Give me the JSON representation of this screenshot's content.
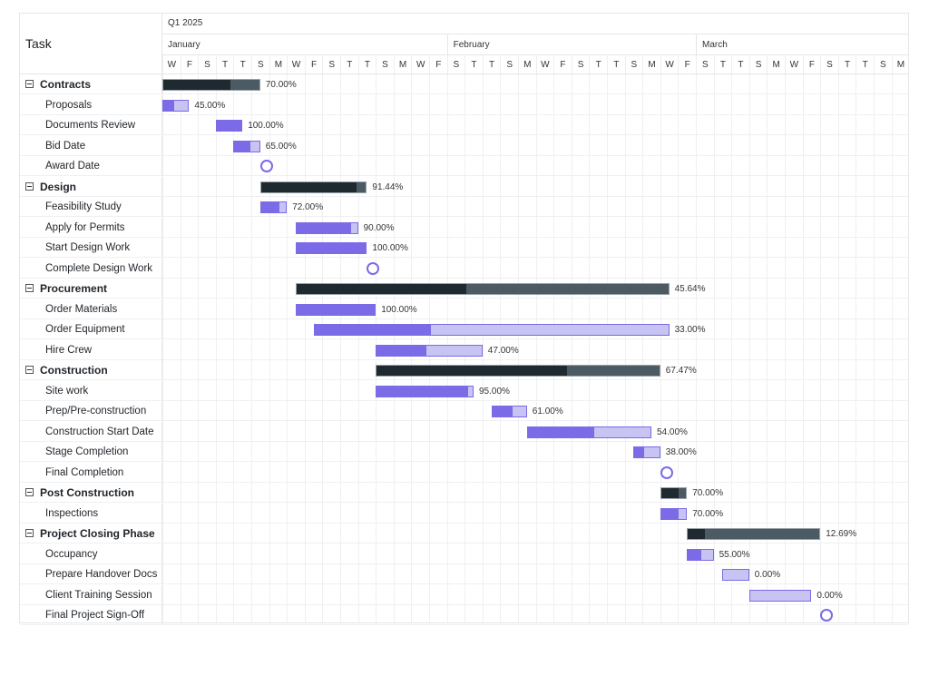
{
  "header": {
    "task_label": "Task",
    "quarter": "Q1 2025",
    "months": [
      "January",
      "February",
      "March"
    ],
    "days": [
      "W",
      "F",
      "S",
      "T",
      "T",
      "S",
      "M",
      "W",
      "F",
      "S",
      "T",
      "T",
      "S",
      "M",
      "W",
      "F",
      "S",
      "T",
      "T",
      "S",
      "M",
      "W",
      "F",
      "S",
      "T",
      "T",
      "S",
      "M",
      "W",
      "F",
      "S",
      "T",
      "T",
      "S",
      "M",
      "W",
      "F",
      "S",
      "T",
      "T",
      "S",
      "M"
    ]
  },
  "colors": {
    "progress_fill": "#7b6be6",
    "progress_track": "#c7c3f2",
    "summary_fill": "#1f2a30",
    "summary_track": "#4b5a63"
  },
  "tasks": [
    {
      "name": "Contracts",
      "type": "parent",
      "start": 0,
      "duration": 5.5,
      "progress": 70.0,
      "label": "70.00%"
    },
    {
      "name": "Proposals",
      "type": "child",
      "start": 0,
      "duration": 1.5,
      "progress": 45.0,
      "label": "45.00%"
    },
    {
      "name": "Documents Review",
      "type": "child",
      "start": 3,
      "duration": 1.5,
      "progress": 100.0,
      "label": "100.00%"
    },
    {
      "name": "Bid Date",
      "type": "child",
      "start": 4,
      "duration": 1.5,
      "progress": 65.0,
      "label": "65.00%"
    },
    {
      "name": "Award Date",
      "type": "milestone",
      "start": 5.5
    },
    {
      "name": "Design",
      "type": "parent",
      "start": 5.5,
      "duration": 6,
      "progress": 91.44,
      "label": "91.44%"
    },
    {
      "name": "Feasibility Study",
      "type": "child",
      "start": 5.5,
      "duration": 1.5,
      "progress": 72.0,
      "label": "72.00%"
    },
    {
      "name": "Apply for Permits",
      "type": "child",
      "start": 7.5,
      "duration": 3.5,
      "progress": 90.0,
      "label": "90.00%"
    },
    {
      "name": "Start Design Work",
      "type": "child",
      "start": 7.5,
      "duration": 4,
      "progress": 100.0,
      "label": "100.00%"
    },
    {
      "name": "Complete Design Work",
      "type": "milestone",
      "start": 11.5
    },
    {
      "name": "Procurement",
      "type": "parent",
      "start": 7.5,
      "duration": 21,
      "progress": 45.64,
      "label": "45.64%"
    },
    {
      "name": "Order Materials",
      "type": "child",
      "start": 7.5,
      "duration": 4.5,
      "progress": 100.0,
      "label": "100.00%"
    },
    {
      "name": "Order Equipment",
      "type": "child",
      "start": 8.5,
      "duration": 20,
      "progress": 33.0,
      "label": "33.00%"
    },
    {
      "name": "Hire Crew",
      "type": "child",
      "start": 12,
      "duration": 6,
      "progress": 47.0,
      "label": "47.00%"
    },
    {
      "name": "Construction",
      "type": "parent",
      "start": 12,
      "duration": 16,
      "progress": 67.47,
      "label": "67.47%"
    },
    {
      "name": "Site work",
      "type": "child",
      "start": 12,
      "duration": 5.5,
      "progress": 95.0,
      "label": "95.00%"
    },
    {
      "name": "Prep/Pre-construction",
      "type": "child",
      "start": 18.5,
      "duration": 2,
      "progress": 61.0,
      "label": "61.00%"
    },
    {
      "name": "Construction Start Date",
      "type": "child",
      "start": 20.5,
      "duration": 7,
      "progress": 54.0,
      "label": "54.00%"
    },
    {
      "name": "Stage Completion",
      "type": "child",
      "start": 26.5,
      "duration": 1.5,
      "progress": 38.0,
      "label": "38.00%"
    },
    {
      "name": "Final Completion",
      "type": "milestone",
      "start": 28
    },
    {
      "name": "Post Construction",
      "type": "parent",
      "start": 28,
      "duration": 1.5,
      "progress": 70.0,
      "label": "70.00%"
    },
    {
      "name": "Inspections",
      "type": "child",
      "start": 28,
      "duration": 1.5,
      "progress": 70.0,
      "label": "70.00%"
    },
    {
      "name": "Project Closing Phase",
      "type": "parent",
      "start": 29.5,
      "duration": 7.5,
      "progress": 12.69,
      "label": "12.69%"
    },
    {
      "name": "Occupancy",
      "type": "child",
      "start": 29.5,
      "duration": 1.5,
      "progress": 55.0,
      "label": "55.00%"
    },
    {
      "name": "Prepare Handover Docs",
      "type": "child",
      "start": 31.5,
      "duration": 1.5,
      "progress": 0.0,
      "label": "0.00%"
    },
    {
      "name": "Client Training Session",
      "type": "child",
      "start": 33,
      "duration": 3.5,
      "progress": 0.0,
      "label": "0.00%"
    },
    {
      "name": "Final Project Sign-Off",
      "type": "milestone",
      "start": 37
    }
  ]
}
